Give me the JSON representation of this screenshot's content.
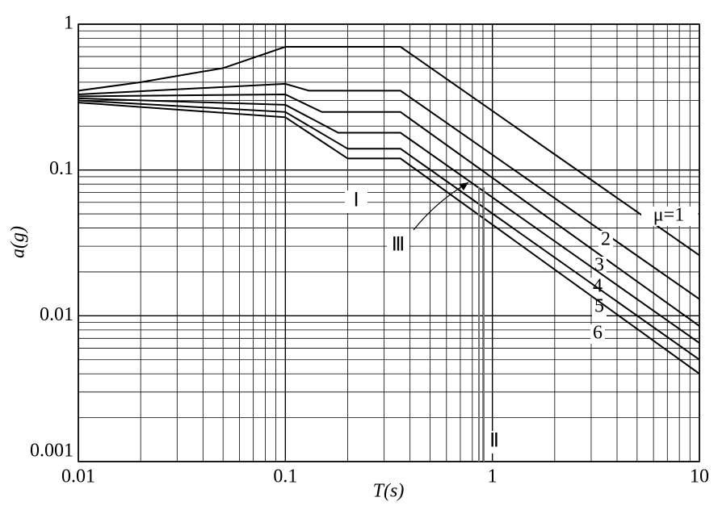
{
  "chart_data": {
    "type": "line",
    "xlabel": "T(s)",
    "ylabel": "a(g)",
    "xlog": true,
    "ylog": true,
    "grid": true,
    "minor_grid": true,
    "xlim": [
      0.01,
      10
    ],
    "ylim": [
      0.001,
      1
    ],
    "xticks": [
      0.01,
      0.1,
      1,
      10
    ],
    "yticks": [
      0.001,
      0.01,
      0.1,
      1
    ],
    "series": [
      {
        "name": "μ=1",
        "color": "#000000",
        "x": [
          0.01,
          0.02,
          0.05,
          0.1,
          0.36,
          10
        ],
        "values": [
          0.35,
          0.4,
          0.5,
          0.7,
          0.7,
          0.026
        ]
      },
      {
        "name": "2",
        "color": "#000000",
        "x": [
          0.01,
          0.1,
          0.13,
          0.36,
          10
        ],
        "values": [
          0.33,
          0.39,
          0.35,
          0.35,
          0.013
        ]
      },
      {
        "name": "3",
        "color": "#000000",
        "x": [
          0.01,
          0.1,
          0.15,
          0.36,
          10
        ],
        "values": [
          0.32,
          0.33,
          0.25,
          0.25,
          0.0085
        ]
      },
      {
        "name": "4",
        "color": "#000000",
        "x": [
          0.01,
          0.1,
          0.18,
          0.36,
          10
        ],
        "values": [
          0.31,
          0.28,
          0.18,
          0.18,
          0.0065
        ]
      },
      {
        "name": "5",
        "color": "#000000",
        "x": [
          0.01,
          0.1,
          0.2,
          0.36,
          10
        ],
        "values": [
          0.3,
          0.25,
          0.14,
          0.14,
          0.005
        ]
      },
      {
        "name": "6",
        "color": "#000000",
        "x": [
          0.01,
          0.1,
          0.2,
          0.36,
          10
        ],
        "values": [
          0.29,
          0.23,
          0.12,
          0.12,
          0.004
        ]
      }
    ],
    "annotations": [
      "Ⅰ",
      "Ⅲ",
      "Ⅱ"
    ]
  }
}
